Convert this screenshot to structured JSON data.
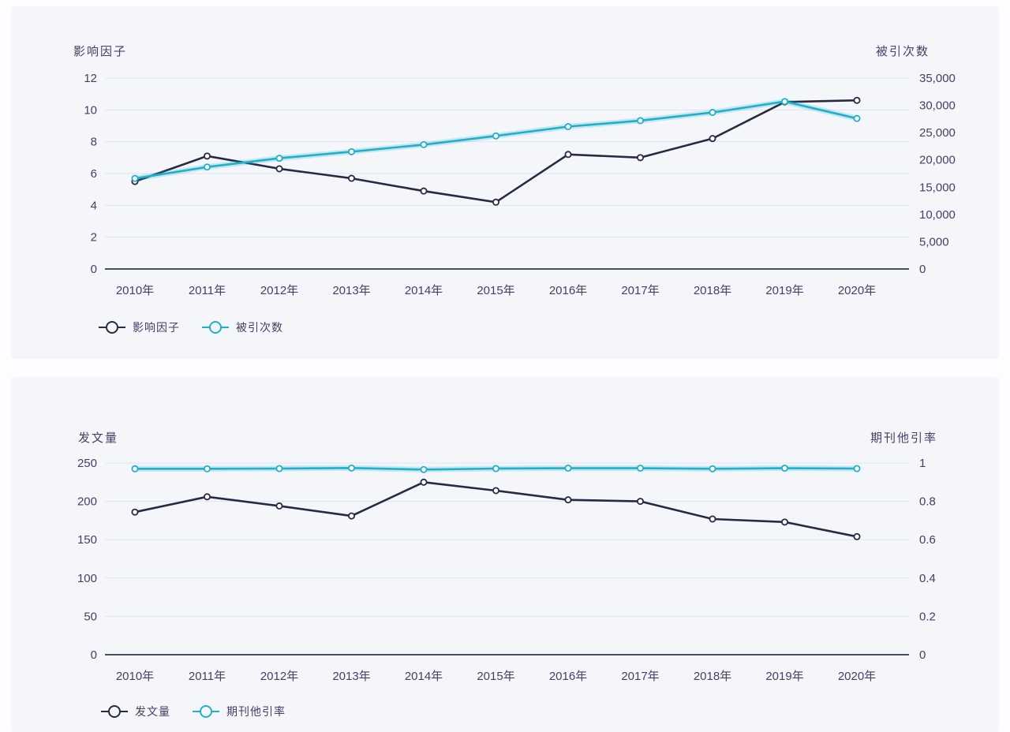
{
  "page": {
    "background_color": "#fdfdff",
    "card_background_color": "#f5f6fa",
    "text_color": "#463e63",
    "gridline_color": "#e0e4ee",
    "axis_line_color": "#4c4c60"
  },
  "chart_data": [
    {
      "type": "line",
      "left_axis_title": "影响因子",
      "right_axis_title": "被引次数",
      "categories": [
        "2010年",
        "2011年",
        "2012年",
        "2013年",
        "2014年",
        "2015年",
        "2016年",
        "2017年",
        "2018年",
        "2019年",
        "2020年"
      ],
      "left_ticks": [
        "12",
        "10",
        "8",
        "6",
        "4",
        "2",
        "0"
      ],
      "right_ticks": [
        "35,000",
        "30,000",
        "25,000",
        "20,000",
        "15,000",
        "10,000",
        "5,000",
        "0"
      ],
      "left_axis_range": [
        0,
        12
      ],
      "right_axis_range": [
        0,
        35000
      ],
      "grid": true,
      "legend_position": "bottom-left",
      "series": [
        {
          "name": "影响因子",
          "axis": "left",
          "color": "#2a2943",
          "values": [
            5.5,
            7.1,
            6.3,
            5.7,
            4.9,
            4.2,
            7.2,
            7.0,
            8.2,
            10.5,
            10.6
          ]
        },
        {
          "name": "被引次数",
          "axis": "right",
          "color": "#20b1c9",
          "values": [
            16600,
            18700,
            20300,
            21500,
            22800,
            24400,
            26100,
            27200,
            28700,
            30700,
            27600
          ]
        }
      ]
    },
    {
      "type": "line",
      "left_axis_title": "发文量",
      "right_axis_title": "期刊他引率",
      "categories": [
        "2010年",
        "2011年",
        "2012年",
        "2013年",
        "2014年",
        "2015年",
        "2016年",
        "2017年",
        "2018年",
        "2019年",
        "2020年"
      ],
      "left_ticks": [
        "250",
        "200",
        "150",
        "100",
        "50",
        "0"
      ],
      "right_ticks": [
        "1",
        "0.8",
        "0.6",
        "0.4",
        "0.2",
        "0"
      ],
      "left_axis_range": [
        0,
        250
      ],
      "right_axis_range": [
        0,
        1
      ],
      "grid": true,
      "legend_position": "bottom-left",
      "series": [
        {
          "name": "发文量",
          "axis": "left",
          "color": "#2a2943",
          "values": [
            186,
            206,
            194,
            181,
            225,
            214,
            202,
            200,
            177,
            173,
            154
          ]
        },
        {
          "name": "期刊他引率",
          "axis": "right",
          "color": "#20b1c9",
          "values": [
            0.97,
            0.97,
            0.971,
            0.974,
            0.966,
            0.971,
            0.973,
            0.973,
            0.97,
            0.973,
            0.971
          ]
        }
      ]
    }
  ]
}
